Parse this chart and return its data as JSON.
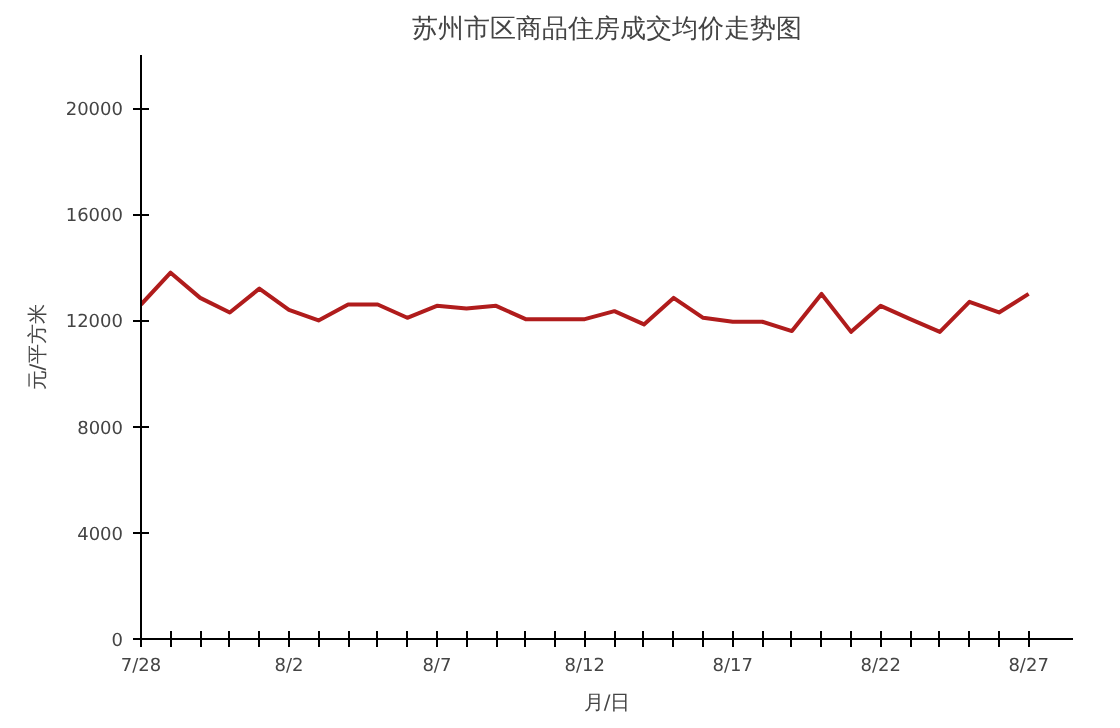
{
  "chart_data": {
    "type": "line",
    "title": "苏州市区商品住房成交均价走势图",
    "xlabel": "月/日",
    "ylabel": "元/平方米",
    "categories": [
      "7/28",
      null,
      null,
      null,
      null,
      "8/2",
      null,
      null,
      null,
      null,
      "8/7",
      null,
      null,
      null,
      null,
      "8/12",
      null,
      null,
      null,
      null,
      "8/17",
      null,
      null,
      null,
      null,
      "8/22",
      null,
      null,
      null,
      null,
      "8/27"
    ],
    "series": [
      {
        "color": "#b01c1c",
        "values": [
          12600,
          13800,
          12850,
          12300,
          13200,
          12400,
          12000,
          12600,
          12600,
          12100,
          12550,
          12450,
          12550,
          12050,
          12050,
          12050,
          12350,
          11850,
          12850,
          12100,
          11950,
          11950,
          11600,
          13000,
          11570,
          12550,
          12050,
          11570,
          12700,
          12300,
          13000
        ]
      }
    ],
    "ylim": [
      0,
      22000
    ],
    "yticks": [
      0,
      4000,
      8000,
      12000,
      16000,
      20000
    ],
    "grid": false,
    "marker": "none",
    "line_style": "solid"
  }
}
